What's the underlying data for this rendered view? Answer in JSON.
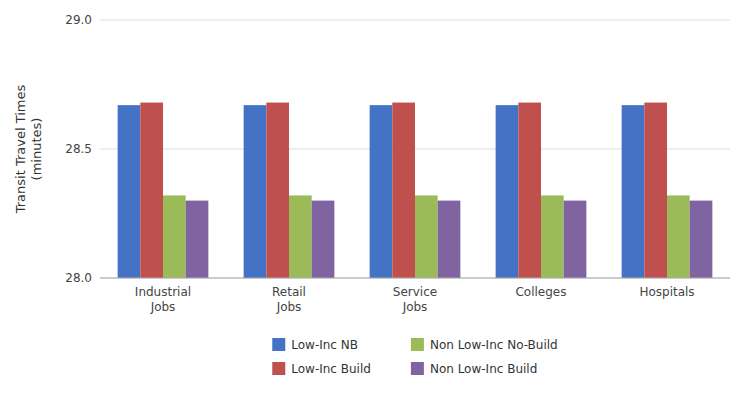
{
  "chart_data": {
    "type": "bar",
    "ylabel": "Transit Travel Times\n(minutes)",
    "categories": [
      "Industrial\nJobs",
      "Retail\nJobs",
      "Service\nJobs",
      "Colleges",
      "Hospitals"
    ],
    "series": [
      {
        "name": "Low-Inc NB",
        "color": "#4472C4",
        "values": [
          28.67,
          28.67,
          28.67,
          28.67,
          28.67
        ]
      },
      {
        "name": "Low-Inc Build",
        "color": "#C0504D",
        "values": [
          28.68,
          28.68,
          28.68,
          28.68,
          28.68
        ]
      },
      {
        "name": "Non Low-Inc No-Build",
        "color": "#9BBB59",
        "values": [
          28.32,
          28.32,
          28.32,
          28.32,
          28.32
        ]
      },
      {
        "name": "Non Low-Inc Build",
        "color": "#8064A2",
        "values": [
          28.3,
          28.3,
          28.3,
          28.3,
          28.3
        ]
      }
    ],
    "ylim": [
      28.0,
      29.0
    ],
    "yticks": [
      {
        "value": 28.0,
        "label": "28.0"
      },
      28.5,
      {
        "value": 29.0,
        "label": "29.0"
      }
    ],
    "grid": true,
    "legend": "bottom"
  }
}
